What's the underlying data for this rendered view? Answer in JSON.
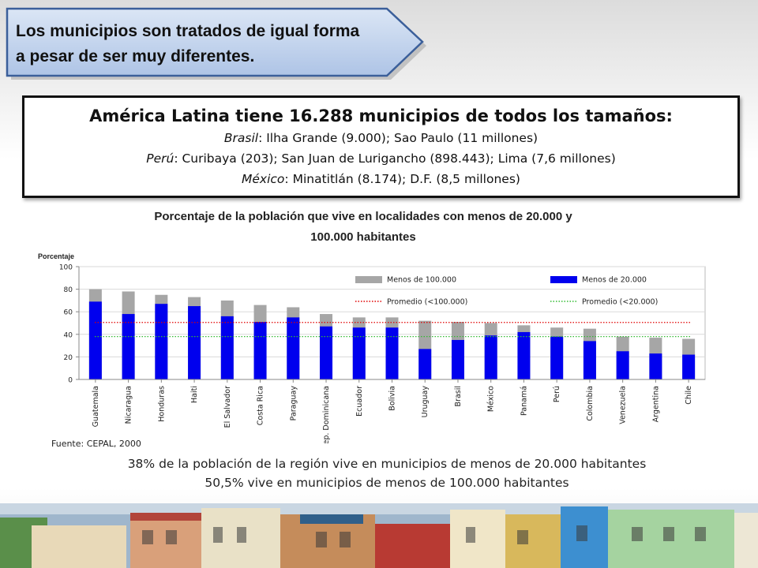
{
  "callout": {
    "line1": "Los municipios son tratados de igual forma",
    "line2": "a pesar de ser muy diferentes."
  },
  "infobox": {
    "heading": "América Latina tiene 16.288 municipios de todos los tamaños:",
    "line1_country": "Brasil",
    "line1_rest": ": Ilha Grande (9.000); Sao Paulo (11 millones)",
    "line2_country": "Perú",
    "line2_rest": ":  Curibaya (203); San Juan de Lurigancho (898.443); Lima (7,6 millones)",
    "line3_country": "México",
    "line3_rest": ": Minatitlán (8.174);  D.F. (8,5 millones)"
  },
  "chart_data": {
    "type": "bar",
    "title_line1": "Porcentaje de la población que vive en localidades con menos de 20.000 y",
    "title_line2": "100.000 habitantes",
    "ylabel": "Porcentaje",
    "ylim": [
      0,
      100
    ],
    "yticks": [
      0,
      20,
      40,
      60,
      80,
      100
    ],
    "grid": true,
    "legend_position": "top-right",
    "categories": [
      "Guatemala",
      "Nicaragua",
      "Honduras",
      "Haiti",
      "El Salvador",
      "Costa Rica",
      "Paraguay",
      "Rep. Dominicana",
      "Ecuador",
      "Bolivia",
      "Uruguay",
      "Brasil",
      "México",
      "Panamá",
      "Perú",
      "Colombia",
      "Venezuela",
      "Argentina",
      "Chile"
    ],
    "series": [
      {
        "name": "Menos de 100.000",
        "color": "#a6a6a6",
        "values": [
          80,
          78,
          75,
          73,
          70,
          66,
          64,
          58,
          55,
          55,
          52,
          51,
          50,
          48,
          46,
          45,
          38,
          37,
          36
        ]
      },
      {
        "name": "Menos de 20.000",
        "color": "#0000ee",
        "values": [
          69,
          58,
          67,
          65,
          56,
          51,
          55,
          47,
          46,
          46,
          27,
          35,
          39,
          42,
          38,
          34,
          25,
          23,
          22
        ]
      }
    ],
    "reference_lines": [
      {
        "name": "Promedio (<100.000)",
        "value": 50.5,
        "color": "#e00000",
        "style": "dotted"
      },
      {
        "name": "Promedio (<20.000)",
        "value": 38,
        "color": "#33bb33",
        "style": "dotted"
      }
    ]
  },
  "source": "Fuente: CEPAL, 2000",
  "summary": {
    "line1": "38% de la población de la región vive en municipios de menos de 20.000 habitantes",
    "line2": "50,5% vive en municipios de menos de 100.000 habitantes"
  }
}
